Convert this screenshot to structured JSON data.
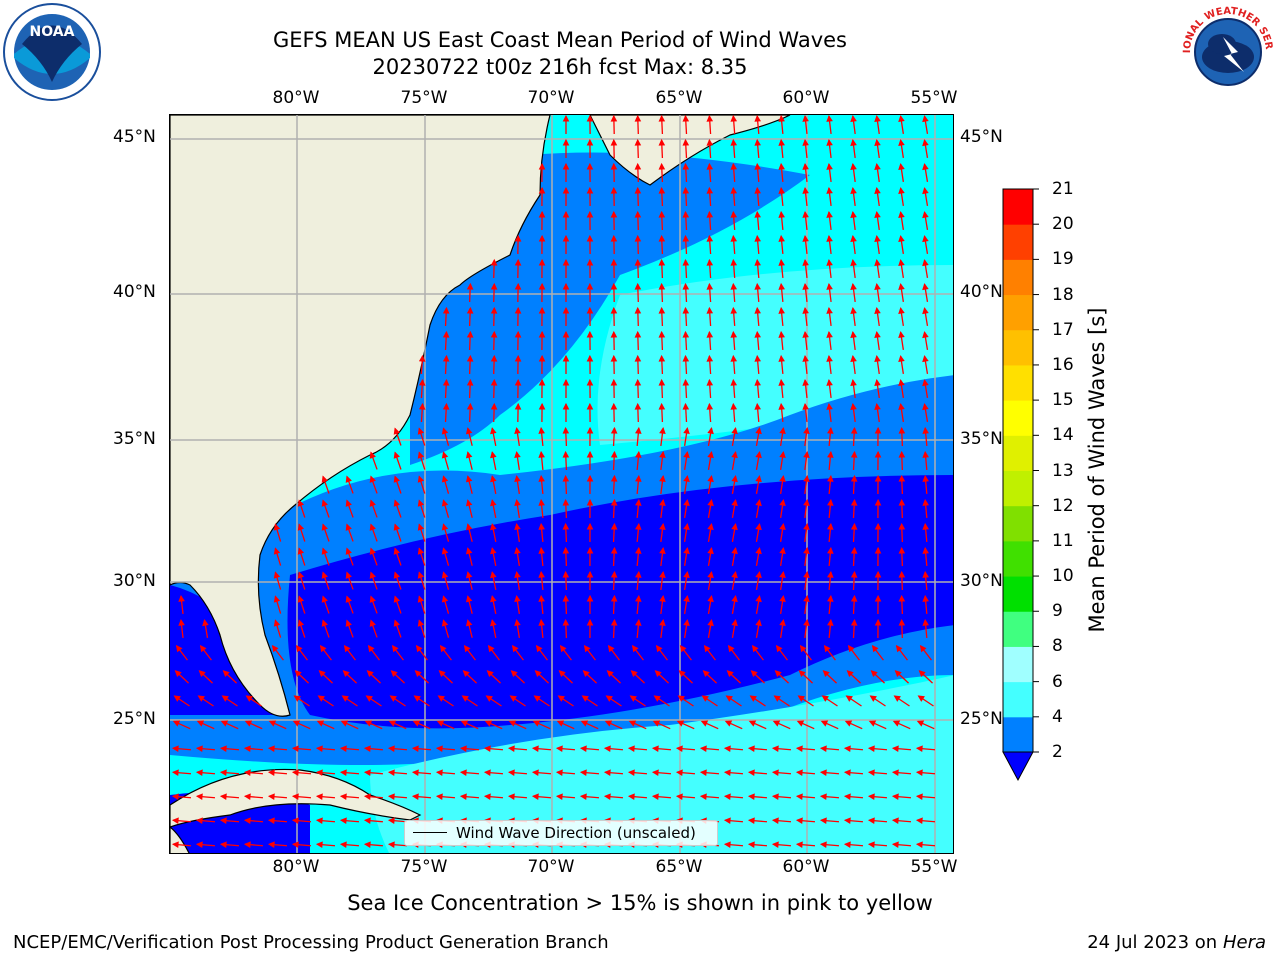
{
  "header": {
    "title_line1": "GEFS MEAN US East Coast Mean Period of Wind Waves",
    "title_line2": "20230722 t00z 216h fcst   Max: 8.35"
  },
  "logos": {
    "left": "noaa-logo",
    "right": "nws-logo"
  },
  "axes": {
    "lon_labels": [
      "80°W",
      "75°W",
      "70°W",
      "65°W",
      "60°W",
      "55°W"
    ],
    "lat_labels": [
      "45°N",
      "40°N",
      "35°N",
      "30°N",
      "25°N"
    ]
  },
  "map": {
    "colors": {
      "land": "#efefdd",
      "ocean_base": "#00ffff",
      "band_2_4": "#0080ff",
      "band_below_2": "#0000ff",
      "band_6_8": "#44ffff",
      "arrows": "#ff0000",
      "grid": "#b0b0b0"
    }
  },
  "legend": {
    "label": "Wind Wave Direction (unscaled)"
  },
  "colorbar": {
    "label": "Mean Period of Wind Waves [s]",
    "ticks": [
      "2",
      "4",
      "6",
      "8",
      "9",
      "10",
      "11",
      "12",
      "13",
      "14",
      "15",
      "16",
      "17",
      "18",
      "19",
      "20",
      "21"
    ],
    "colors": [
      "#0080ff",
      "#00ffff",
      "#44ffff",
      "#a0ffff",
      "#40ff80",
      "#00e000",
      "#40e000",
      "#80e000",
      "#c0f000",
      "#e0f000",
      "#ffff00",
      "#ffe000",
      "#ffc000",
      "#ffa000",
      "#ff8000",
      "#ff4000",
      "#ff0000"
    ],
    "extend_color": "#0000ff"
  },
  "footer": {
    "sea_ice_note": "Sea Ice Concentration > 15% is shown in pink to yellow",
    "left": "NCEP/EMC/Verification Post Processing Product Generation Branch",
    "date": "24 Jul 2023 on",
    "machine": "Hera"
  }
}
